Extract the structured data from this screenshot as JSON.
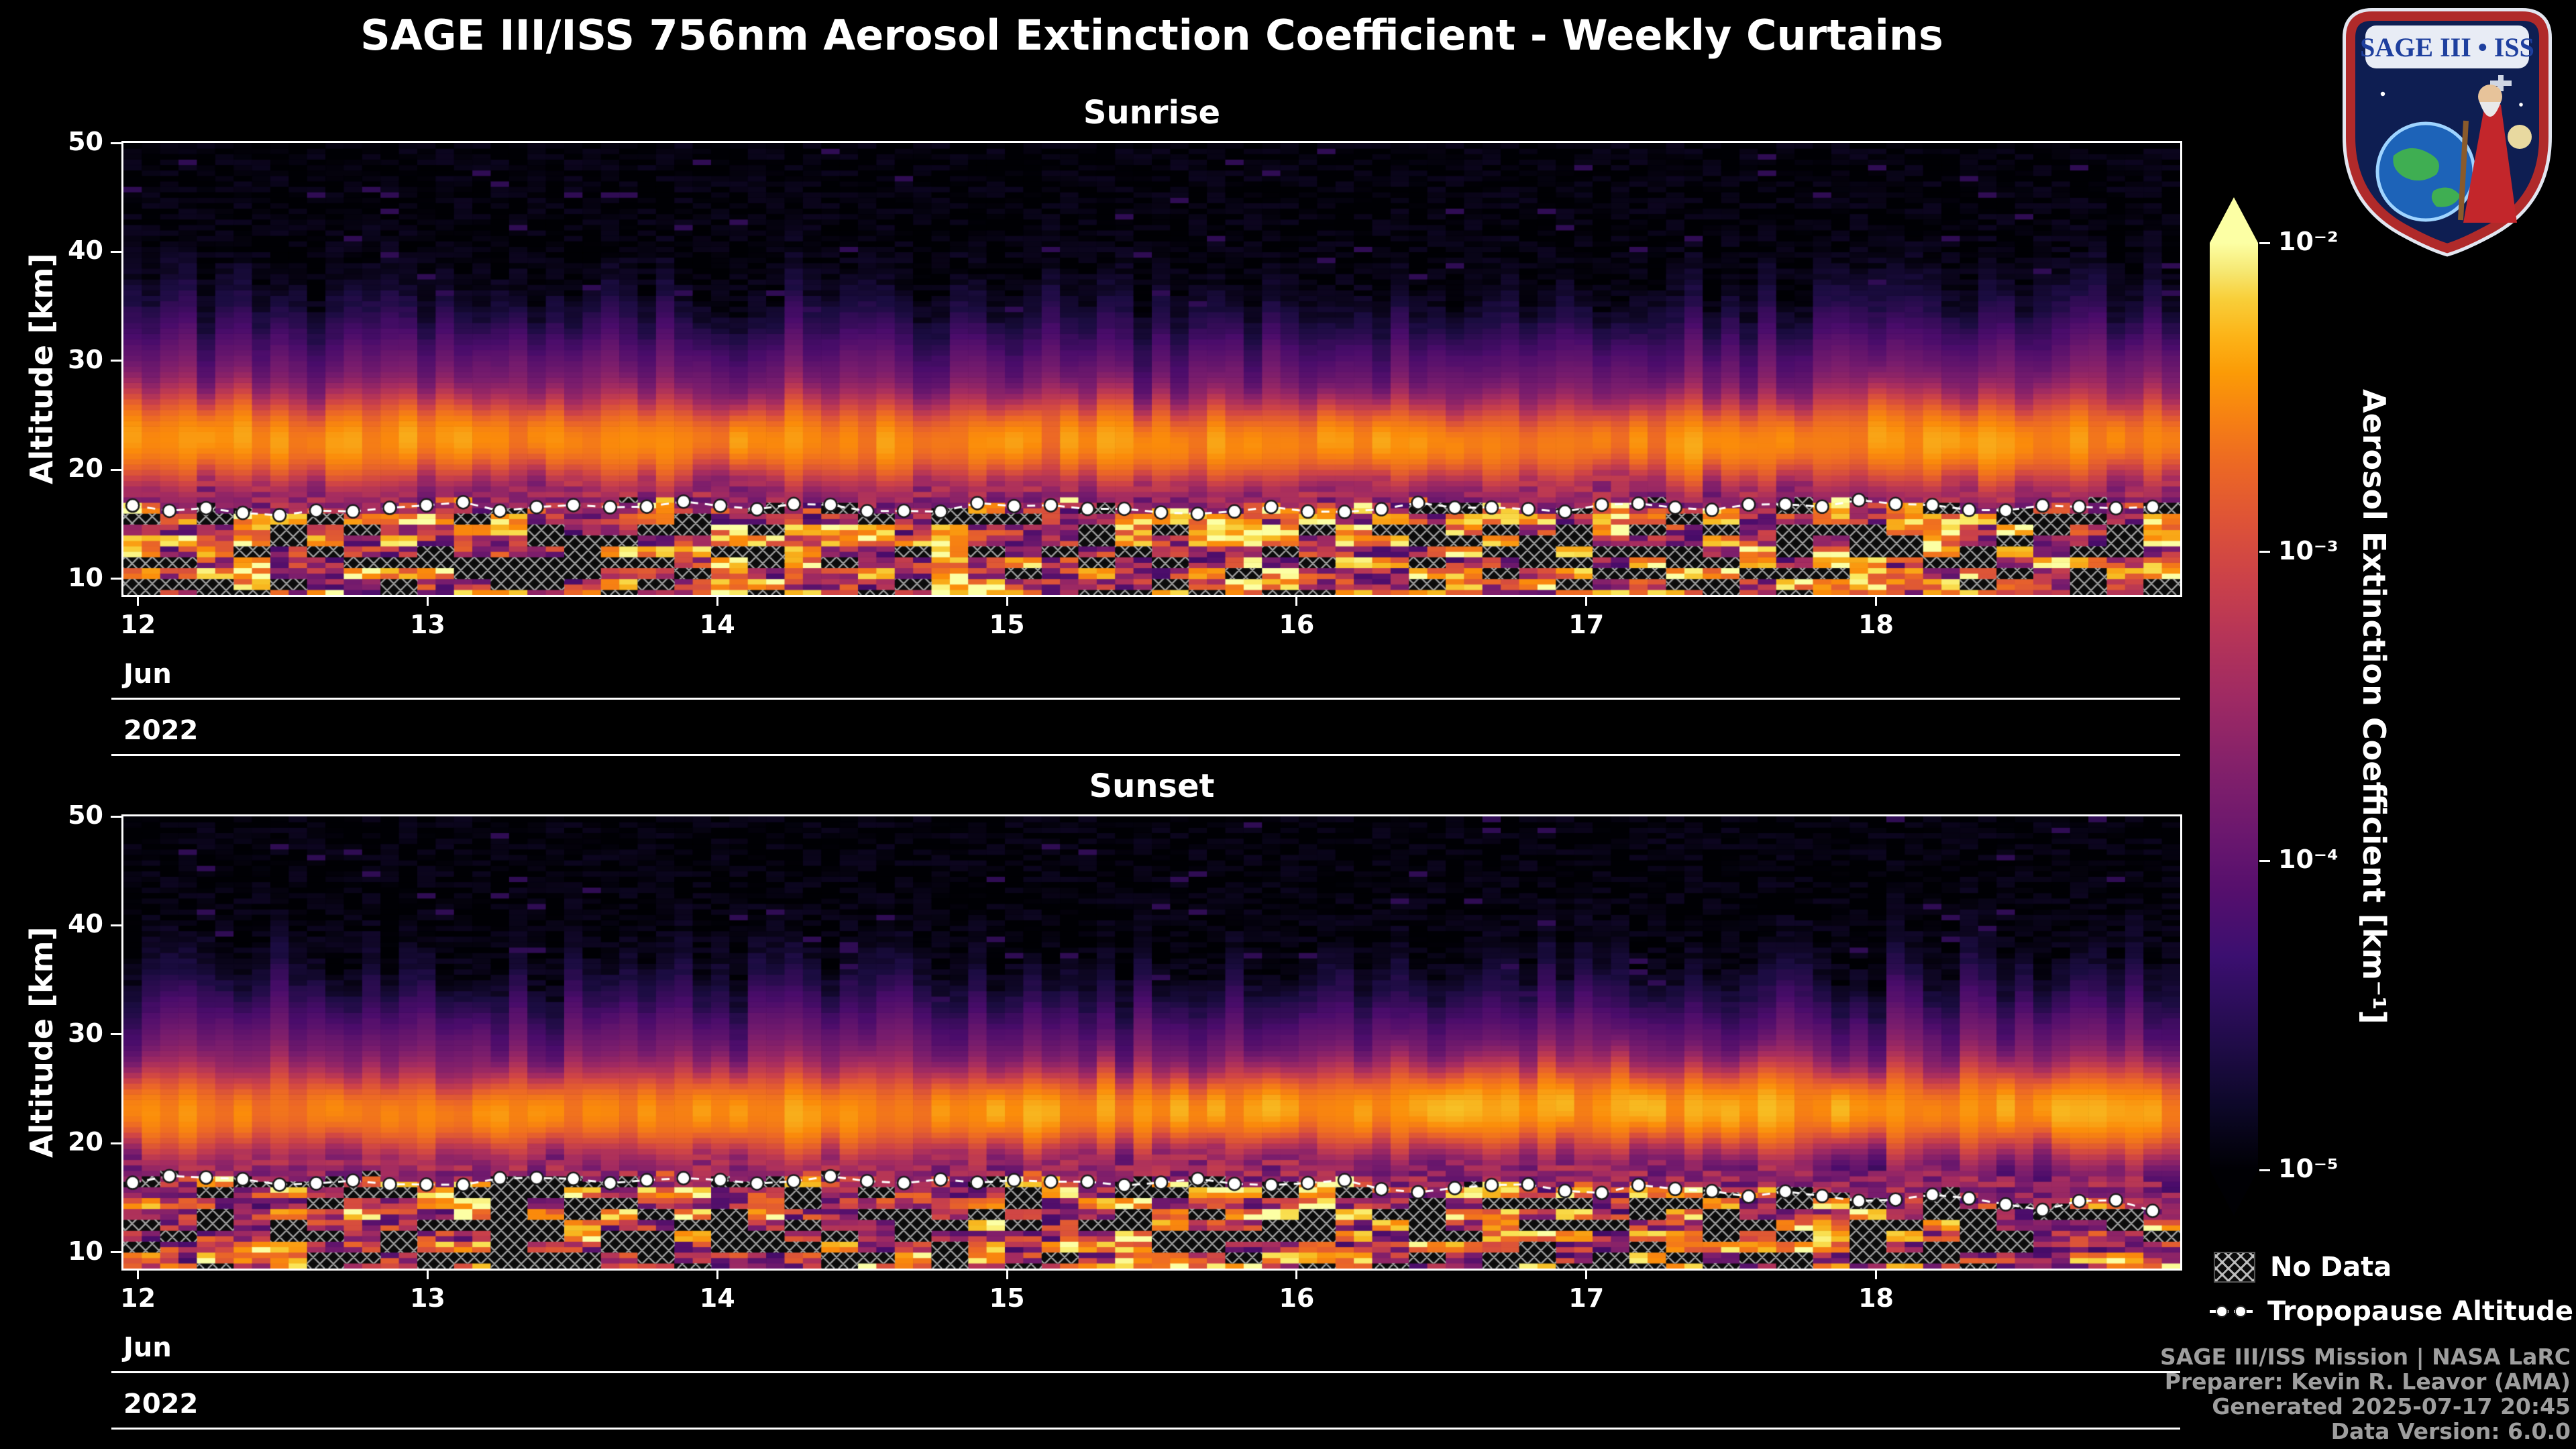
{
  "figure": {
    "title": "SAGE III/ISS 756nm Aerosol Extinction Coefficient - Weekly Curtains",
    "background": "#000000"
  },
  "logo": {
    "title": "SAGE III • ISS"
  },
  "colorbar": {
    "label": "Aerosol Extinction Coefficient [km⁻¹]",
    "ticks": [
      "10⁻²",
      "10⁻³",
      "10⁻⁴",
      "10⁻⁵"
    ],
    "scale": "log",
    "min": 1e-05,
    "max": 0.01,
    "colormap": "inferno",
    "extend": "both"
  },
  "legend": {
    "no_data": "No Data",
    "tropopause": "Tropopause Altitude"
  },
  "attribution": {
    "lines": [
      "SAGE III/ISS Mission | NASA LaRC",
      "Preparer: Kevin R. Leavor (AMA)",
      "Generated 2025-07-17 20:45",
      "Data Version: 6.0.0"
    ]
  },
  "chart_data": [
    {
      "type": "heatmap",
      "title": "Sunrise",
      "ylabel": "Altitude [km]",
      "y_ticks": [
        "10",
        "20",
        "30",
        "40",
        "50"
      ],
      "ylim_km": [
        8.5,
        50
      ],
      "x_ticks": [
        "12",
        "13",
        "14",
        "15",
        "16",
        "17",
        "18"
      ],
      "x_month": "Jun",
      "x_year": "2022",
      "x_range_day": [
        11.95,
        19.05
      ],
      "value_units": "km⁻¹",
      "value_range": [
        1e-05,
        0.01
      ],
      "aerosol_layer": {
        "center_km": [
          22.9,
          23.1,
          22.8,
          22.6,
          22.9,
          23.0,
          22.7,
          22.5,
          22.8,
          22.6,
          22.4,
          22.6,
          22.9,
          22.5,
          22.2,
          22.4,
          22.7,
          22.5,
          22.2,
          22.5,
          22.7,
          22.4,
          22.6,
          22.9,
          22.7,
          22.5,
          22.8,
          23.0
        ],
        "relative_intensity": [
          1.0,
          0.9,
          0.8,
          0.95,
          0.85,
          0.9,
          1.0,
          0.8,
          0.9,
          0.85,
          0.95,
          0.9,
          0.8,
          0.9,
          1.0,
          0.85,
          0.9,
          0.95,
          0.85,
          0.9,
          0.8,
          0.95,
          0.9,
          0.85,
          1.0,
          0.9,
          0.95,
          1.0
        ],
        "peak_extinction": 0.003,
        "sigma_km": 1.7
      },
      "tropopause_km": [
        16.8,
        16.2,
        15.6,
        16.5,
        16.9,
        16.3,
        16.7,
        17.0,
        16.4,
        16.8,
        16.2,
        16.6,
        17.1,
        16.5,
        16.0,
        16.7,
        16.3,
        16.8,
        16.5,
        16.1,
        16.9,
        16.4,
        16.7,
        17.2,
        16.6,
        16.3,
        16.8,
        16.5
      ],
      "no_data_fraction_below_tropopause": 0.34,
      "seed": 20220612
    },
    {
      "type": "heatmap",
      "title": "Sunset",
      "ylabel": "Altitude [km]",
      "y_ticks": [
        "10",
        "20",
        "30",
        "40",
        "50"
      ],
      "ylim_km": [
        8.5,
        50
      ],
      "x_ticks": [
        "12",
        "13",
        "14",
        "15",
        "16",
        "17",
        "18"
      ],
      "x_month": "Jun",
      "x_year": "2022",
      "x_range_day": [
        11.95,
        19.05
      ],
      "value_units": "km⁻¹",
      "value_range": [
        1e-05,
        0.01
      ],
      "aerosol_layer": {
        "center_km": [
          23.0,
          22.8,
          23.1,
          22.9,
          22.6,
          22.8,
          23.0,
          22.7,
          22.9,
          22.6,
          22.8,
          23.0,
          22.7,
          23.1,
          22.9,
          23.2,
          23.0,
          23.3,
          23.1,
          23.4,
          23.2,
          23.0,
          23.3,
          23.1,
          22.9,
          23.2,
          23.0,
          22.8
        ],
        "relative_intensity": [
          0.85,
          0.9,
          0.8,
          0.95,
          0.85,
          0.9,
          0.95,
          0.85,
          0.9,
          1.0,
          0.9,
          0.95,
          1.0,
          0.9,
          1.05,
          1.1,
          1.0,
          1.15,
          1.25,
          1.1,
          1.2,
          1.3,
          1.15,
          1.25,
          1.1,
          1.2,
          1.05,
          1.1
        ],
        "peak_extinction": 0.003,
        "sigma_km": 1.7
      },
      "tropopause_km": [
        16.6,
        16.9,
        16.3,
        16.7,
        16.2,
        16.8,
        16.5,
        17.0,
        16.4,
        16.8,
        16.3,
        16.6,
        16.9,
        16.2,
        16.6,
        16.1,
        16.5,
        15.8,
        16.3,
        15.6,
        16.0,
        15.2,
        15.7,
        14.6,
        15.3,
        13.8,
        14.8,
        13.5
      ],
      "no_data_fraction_below_tropopause": 0.34,
      "seed": 20220613
    }
  ]
}
